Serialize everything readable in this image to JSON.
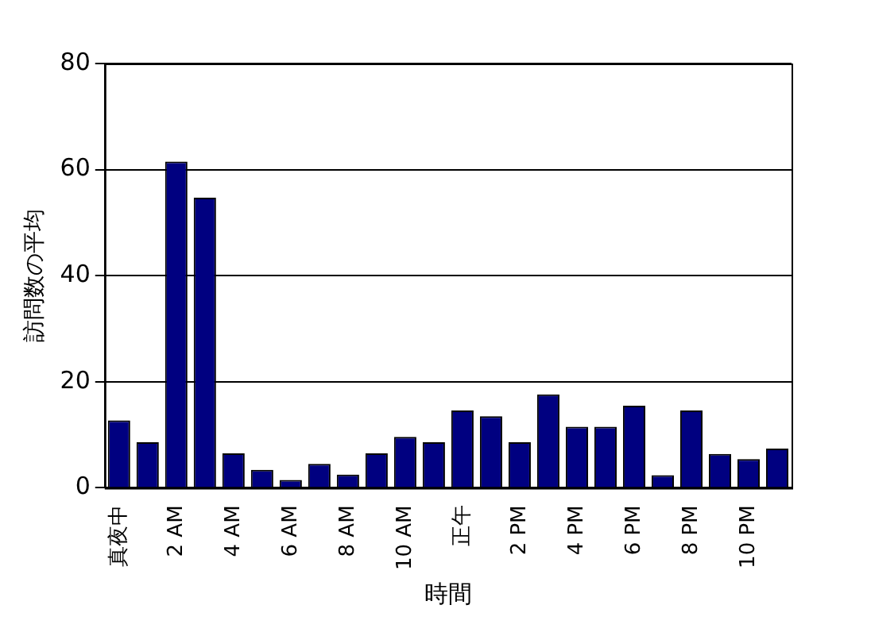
{
  "chart_data": {
    "type": "bar",
    "xlabel": "時間",
    "ylabel": "訪問数の平均",
    "categories": [
      "真夜中",
      null,
      "2 AM",
      null,
      "4 AM",
      null,
      "6 AM",
      null,
      "8 AM",
      null,
      "10 AM",
      null,
      "正午",
      null,
      "2 PM",
      null,
      "4 PM",
      null,
      "6 PM",
      null,
      "8 PM",
      null,
      "10 PM",
      null
    ],
    "values": [
      12.7,
      8.6,
      61.5,
      54.7,
      6.5,
      3.4,
      1.5,
      4.5,
      2.5,
      6.5,
      9.6,
      8.6,
      14.6,
      13.5,
      8.6,
      17.6,
      11.5,
      11.5,
      15.5,
      2.4,
      14.6,
      6.4,
      5.4,
      7.4
    ],
    "color": "#000080",
    "ylim": [
      0,
      80
    ],
    "yticks": [
      0,
      20,
      40,
      60,
      80
    ],
    "grid": "y",
    "legend": false
  }
}
